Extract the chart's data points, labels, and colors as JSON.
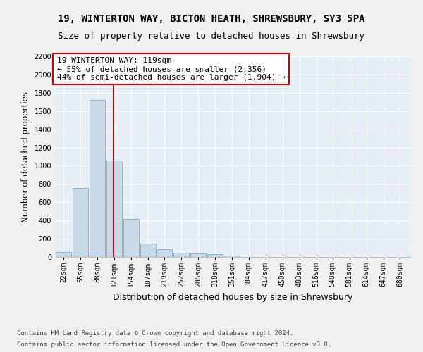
{
  "title_line1": "19, WINTERTON WAY, BICTON HEATH, SHREWSBURY, SY3 5PA",
  "title_line2": "Size of property relative to detached houses in Shrewsbury",
  "xlabel": "Distribution of detached houses by size in Shrewsbury",
  "ylabel": "Number of detached properties",
  "footer_line1": "Contains HM Land Registry data © Crown copyright and database right 2024.",
  "footer_line2": "Contains public sector information licensed under the Open Government Licence v3.0.",
  "annotation_line1": "19 WINTERTON WAY: 119sqm",
  "annotation_line2": "← 55% of detached houses are smaller (2,356)",
  "annotation_line3": "44% of semi-detached houses are larger (1,904) →",
  "bar_color": "#c9d9e8",
  "bar_edge_color": "#7aaac8",
  "vline_color": "#cc0000",
  "vline_x": 119,
  "background_color": "#e8eef5",
  "fig_background_color": "#f0f0f0",
  "categories": [
    "22sqm",
    "55sqm",
    "88sqm",
    "121sqm",
    "154sqm",
    "187sqm",
    "219sqm",
    "252sqm",
    "285sqm",
    "318sqm",
    "351sqm",
    "384sqm",
    "417sqm",
    "450sqm",
    "483sqm",
    "516sqm",
    "548sqm",
    "581sqm",
    "614sqm",
    "647sqm",
    "680sqm"
  ],
  "bin_left_edges": [
    5.5,
    38.5,
    71.5,
    104.5,
    137.5,
    170.5,
    203.5,
    236.5,
    269.5,
    302.5,
    335.5,
    368.5,
    401.5,
    434.5,
    467.5,
    500.5,
    533.5,
    566.5,
    599.5,
    632.5,
    665.5
  ],
  "bin_centers": [
    22,
    55,
    88,
    121,
    154,
    187,
    219,
    252,
    285,
    318,
    351,
    384,
    417,
    450,
    483,
    516,
    548,
    581,
    614,
    647,
    680
  ],
  "bin_width": 33,
  "values": [
    55,
    760,
    1720,
    1060,
    415,
    150,
    85,
    50,
    40,
    30,
    15,
    0,
    0,
    0,
    0,
    0,
    0,
    0,
    0,
    0,
    0
  ],
  "ylim": [
    0,
    2200
  ],
  "yticks": [
    0,
    200,
    400,
    600,
    800,
    1000,
    1200,
    1400,
    1600,
    1800,
    2000,
    2200
  ],
  "grid_color": "#ffffff",
  "title_fontsize": 10,
  "subtitle_fontsize": 9,
  "axis_label_fontsize": 8.5,
  "tick_fontsize": 7,
  "annotation_fontsize": 8,
  "footer_fontsize": 6.5
}
